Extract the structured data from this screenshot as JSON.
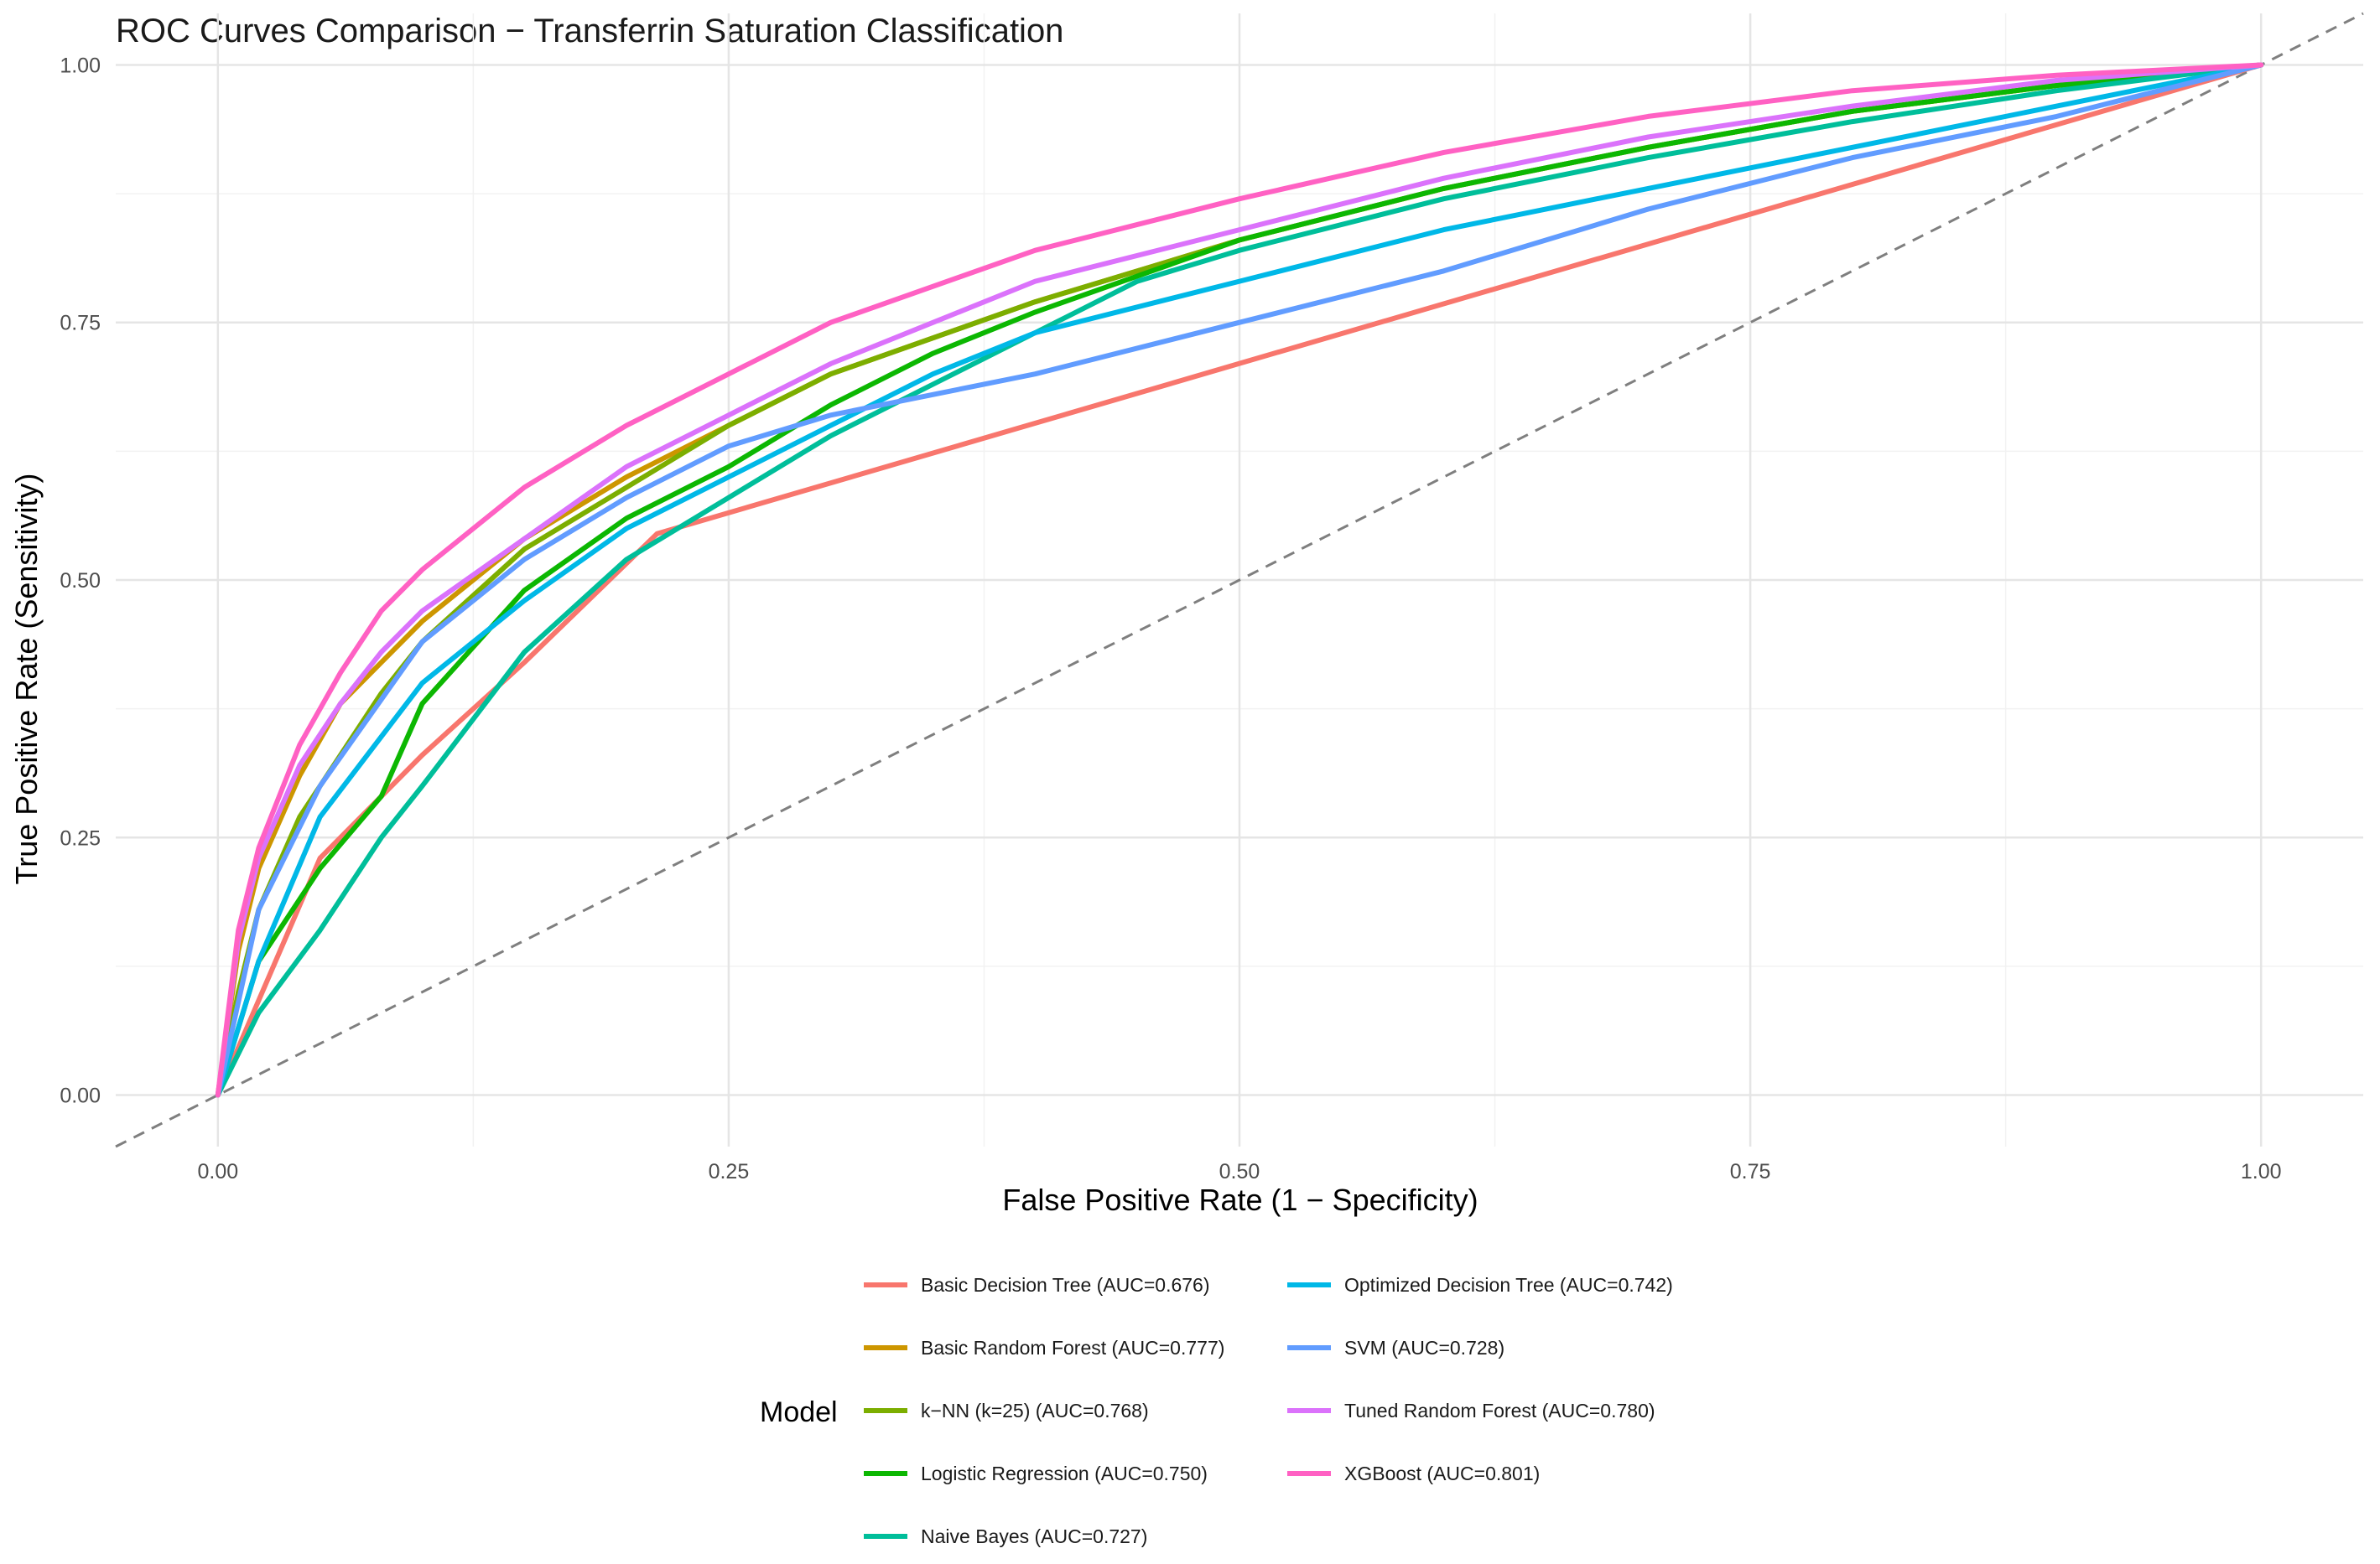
{
  "chart_data": {
    "type": "line",
    "title": "ROC Curves Comparison − Transferrin Saturation Classification",
    "xlabel": "False Positive Rate (1 − Specificity)",
    "ylabel": "True Positive Rate (Sensitivity)",
    "xlim": [
      -0.05,
      1.05
    ],
    "ylim": [
      -0.05,
      1.05
    ],
    "x_ticks": [
      0,
      0.25,
      0.5,
      0.75,
      1
    ],
    "y_ticks": [
      0,
      0.25,
      0.5,
      0.75,
      1
    ],
    "x_tick_labels": [
      "0.00",
      "0.25",
      "0.50",
      "0.75",
      "1.00"
    ],
    "y_tick_labels": [
      "0.00",
      "0.25",
      "0.50",
      "0.75",
      "1.00"
    ],
    "grid": true,
    "legend_title": "Model",
    "legend_position": "bottom",
    "reference_line": {
      "style": "dashed",
      "color": "#7f7f7f",
      "x": [
        -0.05,
        1.05
      ],
      "y": [
        -0.05,
        1.05
      ]
    },
    "series": [
      {
        "name": "Basic Decision Tree (AUC=0.676)",
        "color": "#F8766D",
        "x": [
          0,
          0.05,
          0.1,
          0.15,
          0.215,
          1
        ],
        "y": [
          0,
          0.23,
          0.33,
          0.42,
          0.545,
          1
        ]
      },
      {
        "name": "Basic Random Forest (AUC=0.777)",
        "color": "#CD9600",
        "x": [
          0,
          0.01,
          0.02,
          0.04,
          0.06,
          0.08,
          0.1,
          0.15,
          0.2,
          0.25,
          0.3,
          0.4,
          0.5,
          0.6,
          0.7,
          0.8,
          0.9,
          1
        ],
        "y": [
          0,
          0.14,
          0.22,
          0.31,
          0.38,
          0.42,
          0.46,
          0.54,
          0.6,
          0.65,
          0.7,
          0.77,
          0.83,
          0.88,
          0.92,
          0.955,
          0.98,
          1
        ]
      },
      {
        "name": "k−NN (k=25) (AUC=0.768)",
        "color": "#7CAE00",
        "x": [
          0,
          0.01,
          0.02,
          0.04,
          0.06,
          0.08,
          0.1,
          0.15,
          0.2,
          0.25,
          0.3,
          0.4,
          0.5,
          0.6,
          0.7,
          0.8,
          0.9,
          1
        ],
        "y": [
          0,
          0.1,
          0.18,
          0.27,
          0.33,
          0.39,
          0.44,
          0.53,
          0.59,
          0.65,
          0.7,
          0.77,
          0.83,
          0.88,
          0.92,
          0.955,
          0.98,
          1
        ]
      },
      {
        "name": "Logistic Regression (AUC=0.750)",
        "color": "#0CB702",
        "x": [
          0,
          0.02,
          0.05,
          0.08,
          0.1,
          0.15,
          0.2,
          0.25,
          0.3,
          0.35,
          0.4,
          0.5,
          0.6,
          0.7,
          0.8,
          0.9,
          1
        ],
        "y": [
          0,
          0.13,
          0.22,
          0.29,
          0.38,
          0.49,
          0.56,
          0.61,
          0.67,
          0.72,
          0.76,
          0.83,
          0.88,
          0.92,
          0.955,
          0.98,
          1
        ]
      },
      {
        "name": "Naive Bayes (AUC=0.727)",
        "color": "#00BE9A",
        "x": [
          0,
          0.02,
          0.05,
          0.08,
          0.1,
          0.15,
          0.2,
          0.25,
          0.3,
          0.35,
          0.4,
          0.45,
          0.5,
          0.6,
          0.7,
          0.8,
          0.9,
          1
        ],
        "y": [
          0,
          0.08,
          0.16,
          0.25,
          0.3,
          0.43,
          0.52,
          0.58,
          0.64,
          0.69,
          0.74,
          0.79,
          0.82,
          0.87,
          0.91,
          0.945,
          0.975,
          1
        ]
      },
      {
        "name": "Optimized Decision Tree (AUC=0.742)",
        "color": "#00B8E7",
        "x": [
          0,
          0.02,
          0.05,
          0.1,
          0.15,
          0.2,
          0.25,
          0.3,
          0.35,
          0.4,
          0.5,
          0.6,
          0.7,
          0.8,
          0.9,
          1
        ],
        "y": [
          0,
          0.13,
          0.27,
          0.4,
          0.48,
          0.55,
          0.6,
          0.65,
          0.7,
          0.74,
          0.79,
          0.84,
          0.88,
          0.92,
          0.96,
          1
        ]
      },
      {
        "name": "SVM (AUC=0.728)",
        "color": "#619CFF",
        "x": [
          0,
          0.02,
          0.05,
          0.1,
          0.15,
          0.2,
          0.25,
          0.3,
          0.4,
          0.5,
          0.6,
          0.7,
          0.8,
          0.9,
          1
        ],
        "y": [
          0,
          0.18,
          0.3,
          0.44,
          0.52,
          0.58,
          0.63,
          0.66,
          0.7,
          0.75,
          0.8,
          0.86,
          0.91,
          0.95,
          1
        ]
      },
      {
        "name": "Tuned Random Forest (AUC=0.780)",
        "color": "#DB72FB",
        "x": [
          0,
          0.01,
          0.02,
          0.04,
          0.06,
          0.08,
          0.1,
          0.15,
          0.2,
          0.25,
          0.3,
          0.4,
          0.5,
          0.6,
          0.7,
          0.8,
          0.9,
          1
        ],
        "y": [
          0,
          0.15,
          0.23,
          0.32,
          0.38,
          0.43,
          0.47,
          0.54,
          0.61,
          0.66,
          0.71,
          0.79,
          0.84,
          0.89,
          0.93,
          0.96,
          0.985,
          1
        ]
      },
      {
        "name": "XGBoost (AUC=0.801)",
        "color": "#FF61C3",
        "x": [
          0,
          0.01,
          0.02,
          0.04,
          0.06,
          0.08,
          0.1,
          0.15,
          0.2,
          0.25,
          0.3,
          0.4,
          0.5,
          0.6,
          0.7,
          0.8,
          0.9,
          1
        ],
        "y": [
          0,
          0.16,
          0.24,
          0.34,
          0.41,
          0.47,
          0.51,
          0.59,
          0.65,
          0.7,
          0.75,
          0.82,
          0.87,
          0.915,
          0.95,
          0.975,
          0.99,
          1
        ]
      }
    ]
  }
}
